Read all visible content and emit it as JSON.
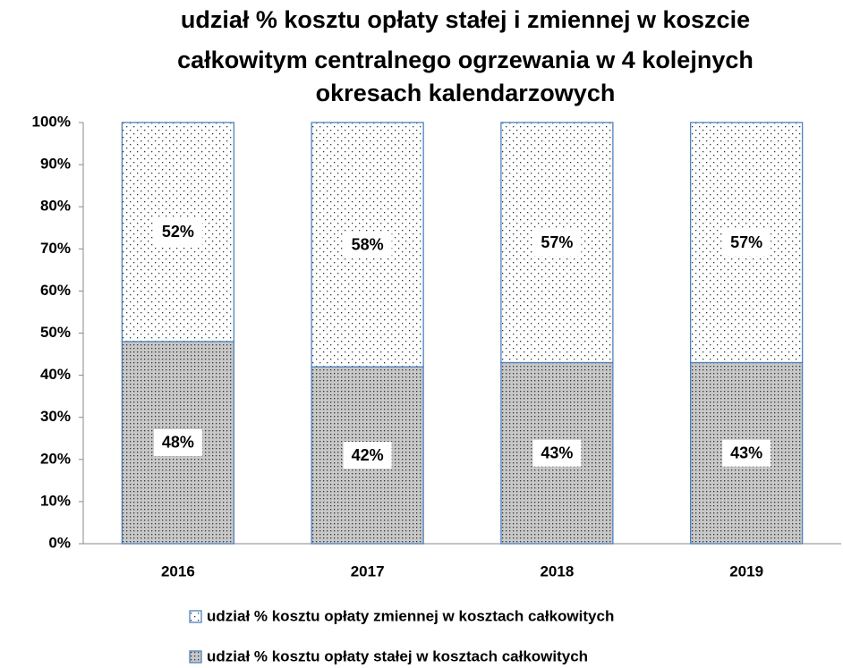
{
  "chart_data": {
    "type": "stacked_bar",
    "title": [
      "udział % kosztu opłaty stałej i zmiennej w koszcie",
      "całkowitym centralnego ogrzewania w 4 kolejnych",
      "okresach kalendarzowych"
    ],
    "categories": [
      "2016",
      "2017",
      "2018",
      "2019"
    ],
    "series": [
      {
        "name": "udział % kosztu opłaty stałej w kosztach całkowitych",
        "color": "#c8c8c8",
        "values": [
          48,
          42,
          43,
          43
        ],
        "value_labels": [
          "48%",
          "42%",
          "43%",
          "43%"
        ]
      },
      {
        "name": "udział % kosztu opłaty zmiennej w kosztach całkowitych",
        "color": "#ffffff",
        "values": [
          52,
          58,
          57,
          57
        ],
        "value_labels": [
          "52%",
          "58%",
          "57%",
          "57%"
        ]
      }
    ],
    "legend_order": [
      1,
      0
    ],
    "edge_color": "#4f81bd",
    "ylim": [
      0,
      100
    ],
    "yticks": [
      {
        "value": 0,
        "label": "0%"
      },
      {
        "value": 10,
        "label": "10%"
      },
      {
        "value": 20,
        "label": "20%"
      },
      {
        "value": 30,
        "label": "30%"
      },
      {
        "value": 40,
        "label": "40%"
      },
      {
        "value": 50,
        "label": "50%"
      },
      {
        "value": 60,
        "label": "60%"
      },
      {
        "value": 70,
        "label": "70%"
      },
      {
        "value": 80,
        "label": "80%"
      },
      {
        "value": 90,
        "label": "90%"
      },
      {
        "value": 100,
        "label": "100%"
      }
    ],
    "grid": false
  }
}
